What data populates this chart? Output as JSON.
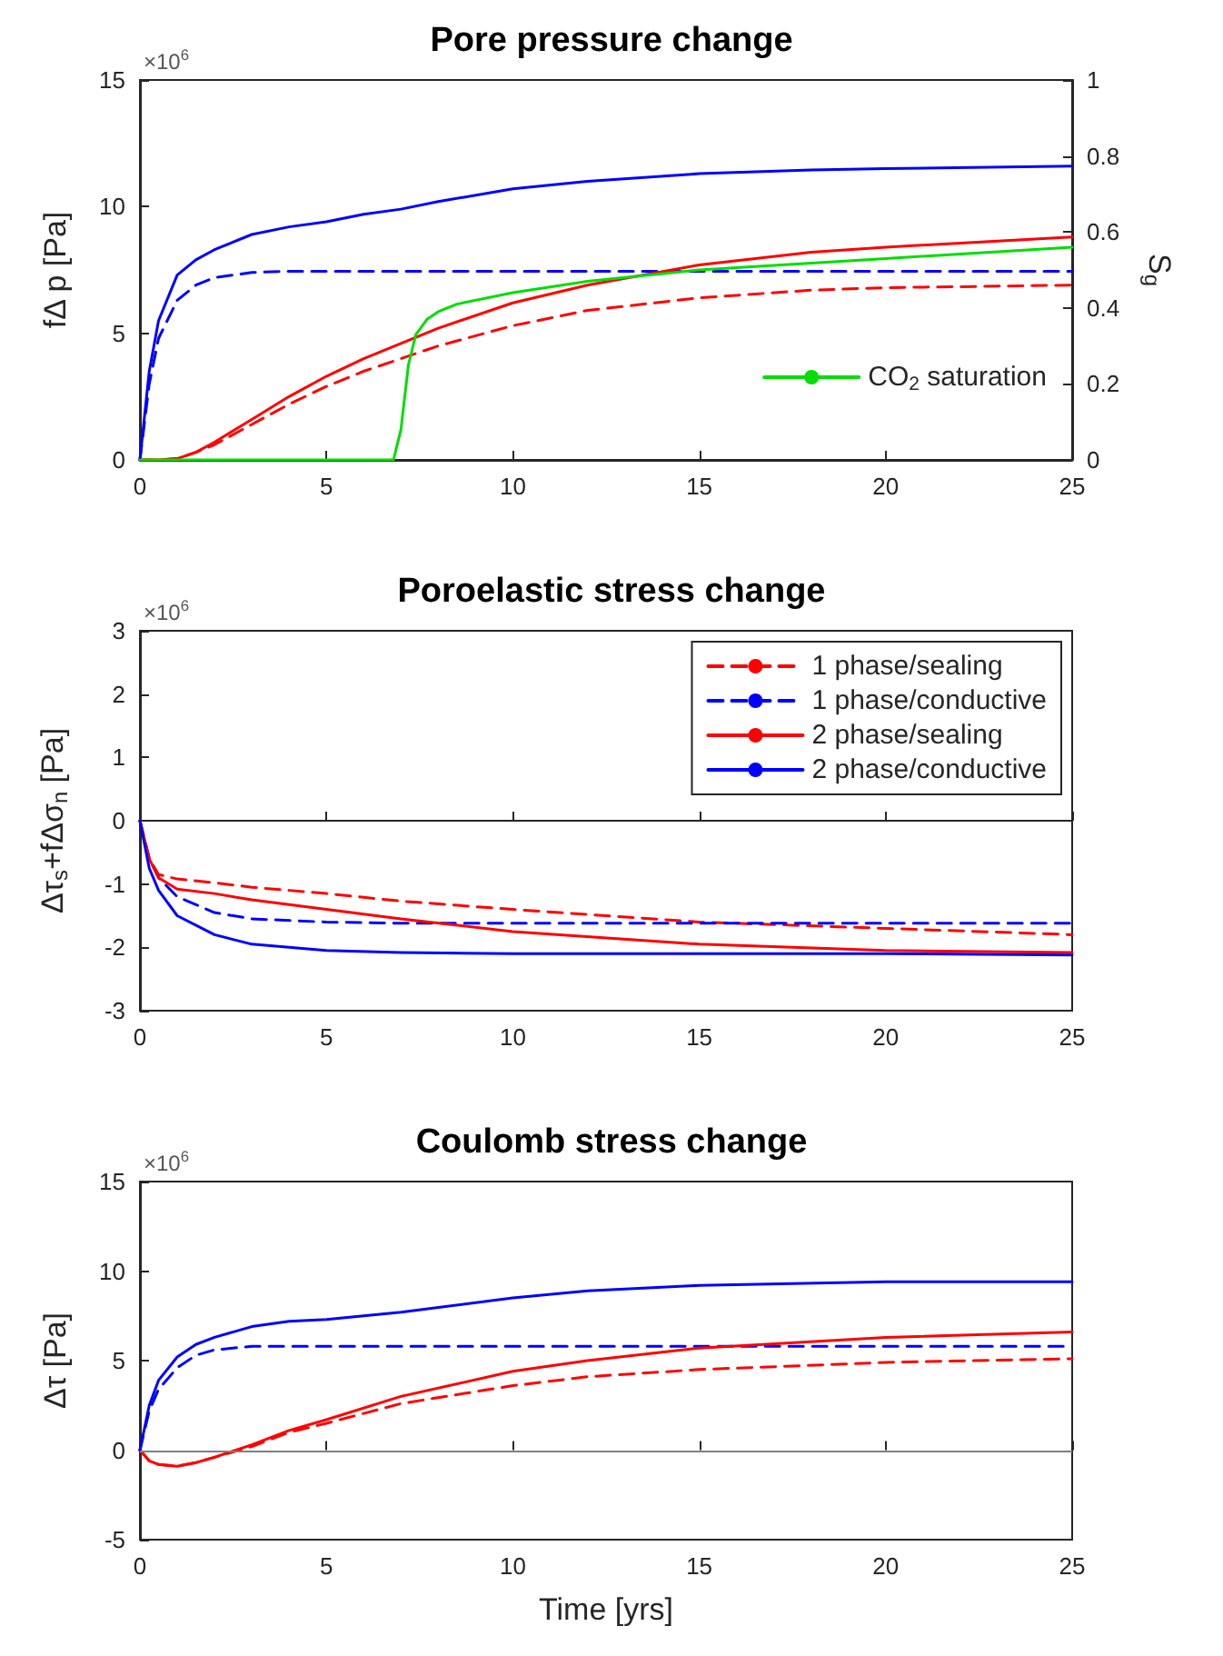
{
  "chart_data": [
    {
      "type": "line",
      "title": "Pore pressure change",
      "ylabel": "fΔ p [Pa]",
      "y2label": "S$_{g}$",
      "annotations": [
        "×10$^{6}$"
      ],
      "x": [
        0,
        0.25,
        0.5,
        1,
        1.5,
        2,
        3,
        4,
        5,
        6,
        7,
        8,
        10,
        12,
        15,
        18,
        20,
        25
      ],
      "xlim": [
        0,
        25
      ],
      "xticks": [
        0,
        5,
        10,
        15,
        20,
        25
      ],
      "ylim": [
        0,
        15
      ],
      "yticks": [
        0,
        5,
        10,
        15
      ],
      "y2lim": [
        0,
        1
      ],
      "y2ticks": [
        0,
        0.2,
        0.4,
        0.6,
        0.8,
        1
      ],
      "legend": "bottom right",
      "series": [
        {
          "color": "#ff0000",
          "line_style": "dashed",
          "values": [
            0,
            0,
            0,
            0.05,
            0.3,
            0.6,
            1.4,
            2.2,
            2.9,
            3.5,
            4.0,
            4.5,
            5.3,
            5.9,
            6.4,
            6.7,
            6.8,
            6.9
          ]
        },
        {
          "color": "#0000ff",
          "line_style": "dashed",
          "values": [
            0,
            3.0,
            4.8,
            6.3,
            6.9,
            7.2,
            7.4,
            7.45,
            7.45,
            7.45,
            7.45,
            7.45,
            7.45,
            7.45,
            7.45,
            7.45,
            7.45,
            7.45
          ]
        },
        {
          "color": "#ff0000",
          "line_style": "solid",
          "values": [
            0,
            0,
            0,
            0.05,
            0.3,
            0.7,
            1.6,
            2.5,
            3.3,
            4.0,
            4.6,
            5.2,
            6.2,
            6.9,
            7.7,
            8.2,
            8.4,
            8.8
          ]
        },
        {
          "color": "#0000ff",
          "line_style": "solid",
          "values": [
            0,
            3.5,
            5.5,
            7.3,
            7.9,
            8.3,
            8.9,
            9.2,
            9.4,
            9.7,
            9.9,
            10.2,
            10.7,
            11.0,
            11.3,
            11.45,
            11.5,
            11.6
          ]
        },
        {
          "name": "CO$_{2}$ saturation",
          "color": "#00dd00",
          "line_style": "solid",
          "axis": "y2",
          "x": [
            0,
            6.8,
            7.0,
            7.2,
            7.4,
            7.7,
            8,
            8.5,
            10,
            12,
            15,
            20,
            25
          ],
          "values": [
            0,
            0,
            0.08,
            0.25,
            0.33,
            0.37,
            0.39,
            0.41,
            0.44,
            0.47,
            0.5,
            0.53,
            0.56
          ]
        }
      ]
    },
    {
      "type": "line",
      "title": "Poroelastic stress change",
      "ylabel": "Δτ$_{s}$+fΔσ$_{n}$ [Pa]",
      "annotations": [
        "×10$^{6}$"
      ],
      "x": [
        0,
        0.25,
        0.5,
        1,
        2,
        3,
        5,
        7,
        10,
        15,
        20,
        25
      ],
      "xlim": [
        0,
        25
      ],
      "xticks": [
        0,
        5,
        10,
        15,
        20,
        25
      ],
      "ylim": [
        -3,
        3
      ],
      "yticks": [
        -3,
        -2,
        -1,
        0,
        1,
        2,
        3
      ],
      "legend": "top right",
      "series": [
        {
          "name": "1 phase/sealing",
          "color": "#ff0000",
          "line_style": "dashed",
          "values": [
            0,
            -0.6,
            -0.85,
            -0.92,
            -0.98,
            -1.05,
            -1.15,
            -1.27,
            -1.4,
            -1.6,
            -1.7,
            -1.8
          ]
        },
        {
          "name": "1 phase/conductive",
          "color": "#0000ff",
          "line_style": "dashed",
          "values": [
            0,
            -0.6,
            -0.9,
            -1.2,
            -1.45,
            -1.55,
            -1.6,
            -1.62,
            -1.62,
            -1.62,
            -1.62,
            -1.62
          ]
        },
        {
          "name": "2 phase/sealing",
          "color": "#ff0000",
          "line_style": "solid",
          "values": [
            0,
            -0.6,
            -0.9,
            -1.08,
            -1.15,
            -1.25,
            -1.4,
            -1.55,
            -1.75,
            -1.95,
            -2.05,
            -2.08
          ]
        },
        {
          "name": "2 phase/conductive",
          "color": "#0000ff",
          "line_style": "solid",
          "values": [
            0,
            -0.75,
            -1.1,
            -1.5,
            -1.8,
            -1.95,
            -2.05,
            -2.08,
            -2.1,
            -2.1,
            -2.1,
            -2.12
          ]
        }
      ]
    },
    {
      "type": "line",
      "title": "Coulomb stress change",
      "xlabel": "Time [yrs]",
      "ylabel": "Δτ [Pa]",
      "annotations": [
        "×10$^{6}$"
      ],
      "x": [
        0,
        0.25,
        0.5,
        1,
        1.5,
        2,
        3,
        4,
        5,
        7,
        10,
        12,
        15,
        20,
        25
      ],
      "xlim": [
        0,
        25
      ],
      "xticks": [
        0,
        5,
        10,
        15,
        20,
        25
      ],
      "ylim": [
        -5,
        15
      ],
      "yticks": [
        -5,
        0,
        5,
        10,
        15
      ],
      "ref_lines": [
        {
          "axis": "y",
          "value": 0,
          "color": "#808080"
        }
      ],
      "series": [
        {
          "color": "#ff0000",
          "line_style": "dashed",
          "values": [
            0,
            -0.6,
            -0.8,
            -0.9,
            -0.7,
            -0.4,
            0.2,
            1.0,
            1.5,
            2.6,
            3.6,
            4.1,
            4.5,
            4.9,
            5.1
          ]
        },
        {
          "color": "#0000ff",
          "line_style": "dashed",
          "values": [
            0,
            2.2,
            3.4,
            4.6,
            5.3,
            5.6,
            5.8,
            5.8,
            5.8,
            5.8,
            5.8,
            5.8,
            5.8,
            5.8,
            5.8
          ]
        },
        {
          "color": "#ff0000",
          "line_style": "solid",
          "values": [
            0,
            -0.6,
            -0.8,
            -0.9,
            -0.7,
            -0.4,
            0.3,
            1.1,
            1.7,
            3.0,
            4.4,
            5.0,
            5.7,
            6.3,
            6.6
          ]
        },
        {
          "color": "#0000ff",
          "line_style": "solid",
          "values": [
            0,
            2.5,
            3.9,
            5.2,
            5.9,
            6.3,
            6.9,
            7.2,
            7.3,
            7.7,
            8.5,
            8.9,
            9.2,
            9.4,
            9.4
          ]
        }
      ]
    }
  ]
}
